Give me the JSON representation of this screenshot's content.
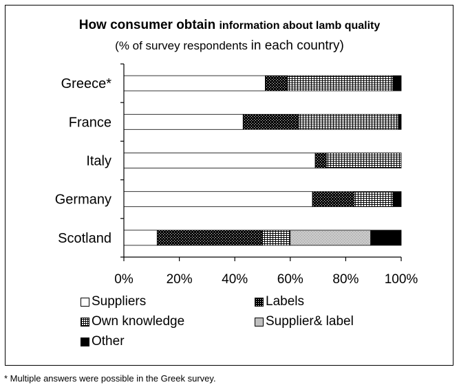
{
  "title_main": "How consumer obtain",
  "title_rest": "information about lamb quality",
  "subtitle_a": "(% of survey respondents",
  "subtitle_b": "in each country)",
  "footnote": "* Multiple answers were possible in the Greek survey.",
  "colors": {
    "suppliers": "#ffffff",
    "labels": "#1e1e1e",
    "own_knowledge": "#d8d8d8",
    "supplier_label": "#c0c0c0",
    "other": "#000000"
  },
  "chart_data": {
    "type": "bar",
    "orientation": "horizontal",
    "stacked": true,
    "categories": [
      "Greece*",
      "France",
      "Italy",
      "Germany",
      "Scotland"
    ],
    "series": [
      {
        "name": "Suppliers",
        "values": [
          51,
          43,
          69,
          68,
          12
        ]
      },
      {
        "name": "Labels",
        "values": [
          8,
          20,
          4,
          15,
          38
        ]
      },
      {
        "name": "Own knowledge",
        "values": [
          38,
          36,
          27,
          14,
          10
        ]
      },
      {
        "name": "Supplier& label",
        "values": [
          0,
          0,
          0,
          0,
          29
        ]
      },
      {
        "name": "Other",
        "values": [
          3,
          1,
          0,
          3,
          11
        ]
      }
    ],
    "xticks": [
      "0%",
      "20%",
      "40%",
      "60%",
      "80%",
      "100%"
    ],
    "xlim": [
      0,
      100
    ],
    "grid": false,
    "legend_position": "bottom"
  }
}
